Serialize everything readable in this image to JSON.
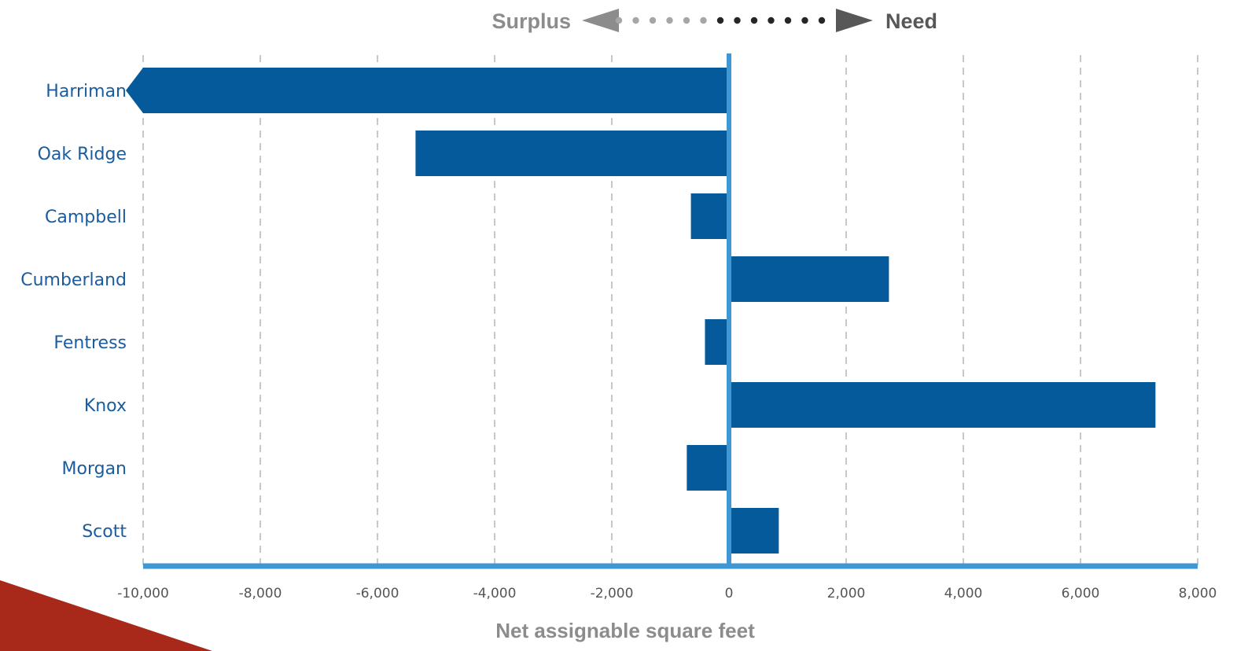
{
  "colors": {
    "bar": "#045a9b",
    "axis": "#3f97d3",
    "grid": "#c8c8c8",
    "category_text": "#1a5c9e",
    "tick_text": "#555555",
    "surplus": "#8c8c8c",
    "need": "#575757",
    "dot_light": "#a6a6a6",
    "dot_dark": "#262626",
    "axis_title": "#8c8c8c",
    "corner": "#a8281a"
  },
  "header": {
    "surplus_label": "Surplus",
    "need_label": "Need"
  },
  "chart_data": {
    "type": "bar",
    "orientation": "horizontal",
    "categories": [
      "Harriman",
      "Oak Ridge",
      "Campbell",
      "Cumberland",
      "Fentress",
      "Knox",
      "Morgan",
      "Scott"
    ],
    "values": [
      -10000,
      -5350,
      -650,
      2730,
      -410,
      7280,
      -720,
      850
    ],
    "clipped": [
      true,
      false,
      false,
      false,
      false,
      false,
      false,
      false
    ],
    "xlim": [
      -10000,
      8000
    ],
    "ticks": [
      -10000,
      -8000,
      -6000,
      -4000,
      -2000,
      0,
      2000,
      4000,
      6000,
      8000
    ],
    "tick_labels": [
      "-10,000",
      "-8,000",
      "-6,000",
      "-4,000",
      "-2,000",
      "0",
      "2,000",
      "4,000",
      "6,000",
      "8,000"
    ],
    "xlabel": "Net assignable square feet",
    "grid": true,
    "grid_style": "dashed-vertical"
  }
}
